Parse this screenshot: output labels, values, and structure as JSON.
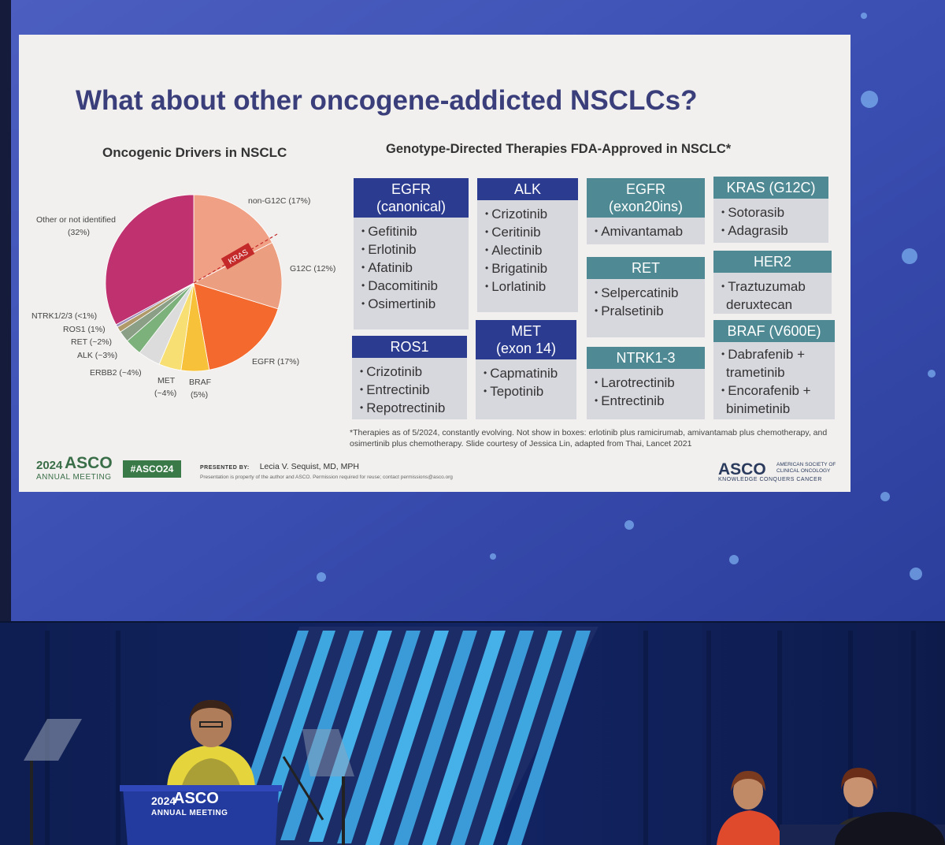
{
  "slide": {
    "title": "What about other oncogene-addicted NSCLCs?",
    "pie_heading": "Oncogenic Drivers in NSCLC",
    "therapy_heading": "Genotype-Directed Therapies FDA-Approved in NSCLC*",
    "pie_center_label": "KRAS",
    "pie_labels": {
      "non_g12c": "non-G12C (17%)",
      "g12c": "G12C (12%)",
      "egfr": "EGFR (17%)",
      "braf_name": "BRAF",
      "braf_pct": "(5%)",
      "met_name": "MET",
      "met_pct": "(~4%)",
      "erbb2": "ERBB2 (~4%)",
      "alk": "ALK (~3%)",
      "ret": "RET (~2%)",
      "ros1": "ROS1 (1%)",
      "ntrk": "NTRK1/2/3 (<1%)",
      "other_line1": "Other or not identified",
      "other_line2": "(32%)"
    },
    "boxes": {
      "egfr_canonical": {
        "title1": "EGFR",
        "title2": "(canonical)",
        "items": [
          "Gefitinib",
          "Erlotinib",
          "Afatinib",
          "Dacomitinib",
          "Osimertinib"
        ]
      },
      "alk": {
        "title": "ALK",
        "items": [
          "Crizotinib",
          "Ceritinib",
          "Alectinib",
          "Brigatinib",
          "Lorlatinib"
        ]
      },
      "egfr_exon20": {
        "title1": "EGFR",
        "title2": "(exon20ins)",
        "items": [
          "Amivantamab"
        ]
      },
      "kras": {
        "title": "KRAS (G12C)",
        "items": [
          "Sotorasib",
          "Adagrasib"
        ]
      },
      "ret": {
        "title": "RET",
        "items": [
          "Selpercatinib",
          "Pralsetinib"
        ]
      },
      "her2": {
        "title": "HER2",
        "item1": "Traztuzumab",
        "item1_cont": "deruxtecan"
      },
      "ros1": {
        "title": "ROS1",
        "items": [
          "Crizotinib",
          "Entrectinib",
          "Repotrectinib"
        ]
      },
      "met": {
        "title1": "MET",
        "title2": "(exon 14)",
        "items": [
          "Capmatinib",
          "Tepotinib"
        ]
      },
      "ntrk": {
        "title": "NTRK1-3",
        "items": [
          "Larotrectinib",
          "Entrectinib"
        ]
      },
      "braf": {
        "title": "BRAF (V600E)",
        "item1": "Dabrafenib +",
        "item1_cont": "trametinib",
        "item2": "Encorafenib +",
        "item2_cont": "binimetinib"
      }
    },
    "footnote": "*Therapies as of 5/2024, constantly evolving. Not show in boxes: erlotinib plus ramicirumab, amivantamab plus chemotherapy, and osimertinib plus chemotherapy. Slide courtesy of  Jessica Lin, adapted from Thai, Lancet 2021",
    "footer": {
      "year": "2024",
      "asco": "ASCO",
      "annual": "ANNUAL MEETING",
      "hashtag": "#ASCO24",
      "presented_by": "PRESENTED BY:",
      "presenter": "Lecia V. Sequist, MD, MPH",
      "legal": "Presentation is property of the author and ASCO. Permission required for reuse; contact permissions@asco.org",
      "logo": "ASCO",
      "society": "AMERICAN SOCIETY OF CLINICAL ONCOLOGY",
      "motto": "KNOWLEDGE CONQUERS CANCER"
    }
  },
  "podium": {
    "year": "2024",
    "asco": "ASCO",
    "annual": "ANNUAL MEETING"
  },
  "colors": {
    "title": "#3a3e7a",
    "box_header_blue": "#2b3b90",
    "box_header_teal": "#4f8a94",
    "box_body": "#d7d7de",
    "pie_other": "#c0316f",
    "pie_kras_non_g12c": "#f0a085",
    "pie_kras_g12c": "#eb9f80",
    "pie_egfr": "#f46a2e",
    "pie_braf": "#f7c23a",
    "pie_met": "#f7df74",
    "pie_erbb2": "#dcdcdc",
    "pie_alk": "#7db17c",
    "asco_green": "#3a7a48"
  },
  "chart_data": {
    "type": "pie",
    "title": "Oncogenic Drivers in NSCLC",
    "labels": [
      "non-G12C (17%)",
      "G12C (12%)",
      "EGFR (17%)",
      "BRAF (5%)",
      "MET (~4%)",
      "ERBB2 (~4%)",
      "ALK (~3%)",
      "RET (~2%)",
      "ROS1 (1%)",
      "NTRK1/2/3 (<1%)",
      "Other or not identified (32%)"
    ],
    "values": [
      17,
      12,
      17,
      5,
      4,
      4,
      3,
      2,
      1,
      0.5,
      32
    ]
  }
}
